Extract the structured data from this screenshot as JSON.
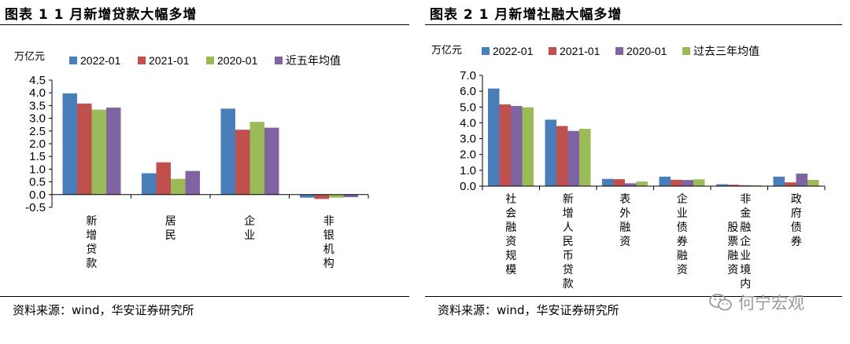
{
  "left": {
    "title": "图表 1 1 月新增贷款大幅多增",
    "source": "资料来源：wind，华安证券研究所"
  },
  "right": {
    "title": "图表 2 1 月新增社融大幅多增",
    "source": "资料来源：wind，华安证券研究所"
  },
  "watermark": {
    "text": "何宁宏观",
    "icon": "wechat-icon"
  },
  "chart_data": [
    {
      "type": "bar",
      "title": "图表 1 1 月新增贷款大幅多增",
      "ylabel": "万亿元",
      "ylim": [
        -0.5,
        4.5
      ],
      "yticks": [
        4.5,
        4.0,
        3.5,
        3.0,
        2.5,
        2.0,
        1.5,
        1.0,
        0.5,
        0.0,
        -0.5
      ],
      "ytick_labels": [
        "4.5",
        "4.0",
        "3.5",
        "3.0",
        "2.5",
        "2.0",
        "1.5",
        "1.0",
        "0.5",
        "0.0",
        "-0.5"
      ],
      "categories": [
        "新增贷款",
        "居民",
        "企业",
        "非银机构"
      ],
      "series": [
        {
          "name": "2022-01",
          "color": "#4a7ebb",
          "values": [
            3.98,
            0.84,
            3.38,
            -0.12
          ]
        },
        {
          "name": "2021-01",
          "color": "#c0504d",
          "values": [
            3.58,
            1.27,
            2.55,
            -0.17
          ]
        },
        {
          "name": "2020-01",
          "color": "#9bbb59",
          "values": [
            3.34,
            0.62,
            2.86,
            -0.12
          ]
        },
        {
          "name": "近五年均值",
          "color": "#8064a2",
          "values": [
            3.42,
            0.93,
            2.63,
            -0.1
          ]
        }
      ]
    },
    {
      "type": "bar",
      "title": "图表 2 1 月新增社融大幅多增",
      "ylabel": "万亿元",
      "ylim": [
        0,
        7
      ],
      "yticks": [
        7,
        6,
        5,
        4,
        3,
        2,
        1,
        0
      ],
      "ytick_labels": [
        "7.0",
        "6.0",
        "5.0",
        "4.0",
        "3.0",
        "2.0",
        "1.0",
        "0.0"
      ],
      "categories": [
        "社会融资规模",
        "新增人民币贷款",
        "表外融资",
        "企业债券融资",
        "非金融企业境内股票融资",
        "政府债券"
      ],
      "series": [
        {
          "name": "2022-01",
          "color": "#4a7ebb",
          "values": [
            6.17,
            4.2,
            0.46,
            0.6,
            0.12,
            0.6
          ]
        },
        {
          "name": "2021-01",
          "color": "#c0504d",
          "values": [
            5.17,
            3.8,
            0.44,
            0.4,
            0.09,
            0.24
          ]
        },
        {
          "name": "2020-01",
          "color": "#8064a2",
          "values": [
            5.07,
            3.49,
            0.18,
            0.39,
            0.06,
            0.79
          ]
        },
        {
          "name": "过去三年均值",
          "color": "#9bbb59",
          "values": [
            4.98,
            3.62,
            0.29,
            0.43,
            0.06,
            0.4
          ]
        }
      ]
    }
  ]
}
